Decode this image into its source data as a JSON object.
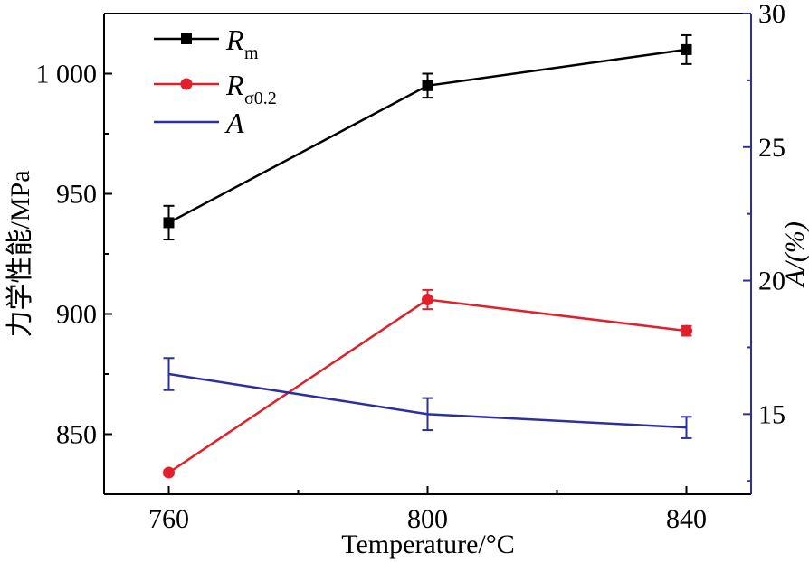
{
  "chart_data": {
    "type": "line",
    "xlabel": "Temperature/°C",
    "ylabel": "力学性能/MPa",
    "y2label": "A/(%)",
    "x": [
      760,
      800,
      840
    ],
    "xticks": [
      "760",
      "800",
      "840"
    ],
    "xlim": [
      750,
      850
    ],
    "ylim": [
      825,
      1025
    ],
    "yticks": [
      {
        "v": 850,
        "label": "850"
      },
      {
        "v": 900,
        "label": "900"
      },
      {
        "v": 950,
        "label": "950"
      },
      {
        "v": 1000,
        "label": "1 000"
      }
    ],
    "y2lim": [
      12,
      30
    ],
    "y2ticks": [
      {
        "v": 15,
        "label": "15"
      },
      {
        "v": 20,
        "label": "20"
      },
      {
        "v": 25,
        "label": "25"
      },
      {
        "v": 30,
        "label": "30"
      }
    ],
    "legend_position": "top-left",
    "series": [
      {
        "name": "Rm",
        "sub": "m",
        "main": "R",
        "axis": "left",
        "color": "#000000",
        "marker": "square",
        "values": [
          938,
          995,
          1010
        ],
        "errors": [
          7,
          5,
          6
        ]
      },
      {
        "name": "Rσ0.2",
        "sub": "σ0.2",
        "main": "R",
        "axis": "left",
        "color": "#e0202a",
        "marker": "circle",
        "values": [
          834,
          906,
          893
        ],
        "errors": [
          1,
          4,
          2
        ]
      },
      {
        "name": "A",
        "sub": "",
        "main": "A",
        "axis": "right",
        "color": "#2b2fa0",
        "marker": "none",
        "values": [
          16.5,
          15.0,
          14.5
        ],
        "errors": [
          0.6,
          0.6,
          0.4
        ]
      }
    ]
  }
}
